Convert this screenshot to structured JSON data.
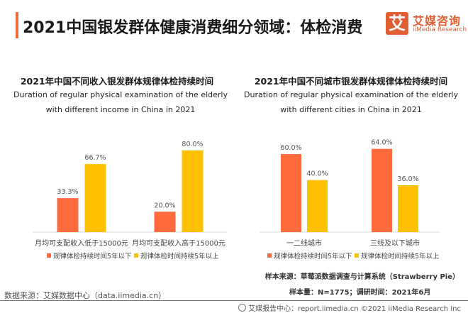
{
  "header": {
    "title": "2021中国银发群体健康消费细分领域：体检消费",
    "logo_mark": "艾",
    "logo_cn": "艾媒咨询",
    "logo_en": "iiMedia Research"
  },
  "colors": {
    "accent": "#f26c3d",
    "series_below5": "#ff6b3d",
    "series_above5": "#ffc000"
  },
  "chart_data": [
    {
      "type": "bar",
      "title": "2021年中国不同收入银发群体规律体检持续时间",
      "subtitle_line1": "Duration of regular physical examination of the elderly",
      "subtitle_line2": "with different income in China in 2021",
      "categories": [
        "月均可支配收入低于15000元",
        "月均可支配收入高于15000元"
      ],
      "series": [
        {
          "name": "规律体检持续时间5年以下",
          "values": [
            33.3,
            20.0
          ],
          "labels": [
            "33.3%",
            "20.0%"
          ]
        },
        {
          "name": "规律体检时间持续5年以上",
          "values": [
            66.7,
            80.0
          ],
          "labels": [
            "66.7%",
            "80.0%"
          ]
        }
      ],
      "ylim": [
        0,
        80
      ],
      "legend": "bottom",
      "grid": false
    },
    {
      "type": "bar",
      "title": "2021年中国不同城市银发群体规律体检持续时间",
      "subtitle_line1": "Duration of regular physical examination of the elderly",
      "subtitle_line2": "with different cities in China in 2021",
      "categories": [
        "一二线城市",
        "三线及以下城市"
      ],
      "series": [
        {
          "name": "规律体检持续时间5年以下",
          "values": [
            60.0,
            64.0
          ],
          "labels": [
            "60.0%",
            "64.0%"
          ]
        },
        {
          "name": "规律体检时间持续5年以上",
          "values": [
            40.0,
            36.0
          ],
          "labels": [
            "40.0%",
            "36.0%"
          ]
        }
      ],
      "ylim": [
        0,
        64
      ],
      "legend": "bottom",
      "grid": false
    }
  ],
  "sources": {
    "data_source": "数据来源：艾媒数据中心（data.iimedia.cn）",
    "sample_source": "样本来源：草莓派数据调查与计算系统（Strawberry Pie）",
    "sample_size": "样本量：N=1775；调研时间：2021年6月"
  },
  "footer": {
    "text": "艾媒报告中心：report.iimedia.cn   ©2021  iiMedia Research  Inc"
  }
}
